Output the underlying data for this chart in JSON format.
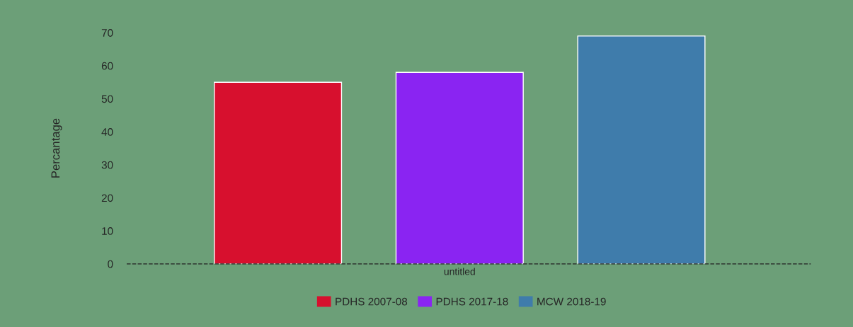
{
  "chart_data": {
    "type": "bar",
    "ylabel": "Percantage",
    "categories": [
      "untitled"
    ],
    "series": [
      {
        "name": "PDHS 2007-08",
        "color": "#d7102e",
        "values": [
          55
        ]
      },
      {
        "name": "PDHS 2017-18",
        "color": "#8a24f2",
        "values": [
          58
        ]
      },
      {
        "name": "MCW 2018-19",
        "color": "#3f7cab",
        "values": [
          69
        ]
      }
    ],
    "ylim": [
      0,
      70
    ],
    "yticks": [
      0,
      10,
      20,
      30,
      40,
      50,
      60,
      70
    ],
    "grid": false,
    "legend": "bottom"
  }
}
